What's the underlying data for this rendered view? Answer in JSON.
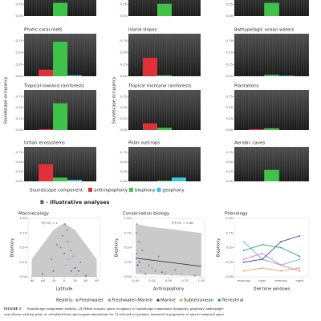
{
  "panel_a": {
    "y_label": "Soundscape occupancy",
    "ylim": [
      0,
      0.9
    ],
    "yticks": [
      {
        "value": 0,
        "label": "0.00"
      },
      {
        "value": 0.25,
        "label": "0.25"
      },
      {
        "value": 0.5,
        "label": "0.50"
      },
      {
        "value": 0.75,
        "label": "0.75"
      }
    ],
    "top_row": [
      {
        "values": [
          0,
          0.28,
          0
        ]
      },
      {
        "values": [
          0,
          0.26,
          0
        ]
      },
      {
        "values": [
          0,
          0.28,
          0
        ]
      }
    ],
    "panels": [
      {
        "title": "Photic coral reefs",
        "values": [
          0.14,
          0.73,
          0.02
        ]
      },
      {
        "title": "Island slopes",
        "values": [
          0.39,
          0.02,
          0
        ]
      },
      {
        "title": "Bathypelagic ocean waters",
        "values": [
          0,
          0.03,
          0.01
        ]
      },
      {
        "title": "Tropical lowland rainforests",
        "values": [
          0.02,
          0.6,
          0
        ]
      },
      {
        "title": "Tropical montane rainforests",
        "values": [
          0.15,
          0.05,
          0
        ]
      },
      {
        "title": "Plantations",
        "values": [
          0.02,
          0.04,
          0
        ]
      },
      {
        "title": "Urban ecosystems",
        "values": [
          0.45,
          0.1,
          0.04
        ]
      },
      {
        "title": "Polar outcrops",
        "values": [
          0,
          0.02,
          0.1
        ]
      },
      {
        "title": "Aerobic caves",
        "values": [
          0,
          0.3,
          0
        ]
      }
    ],
    "legend_title": "Soundscape component:",
    "components": [
      {
        "name": "anthropophony",
        "color": "#e0313a"
      },
      {
        "name": "biophony",
        "color": "#3ec24a"
      },
      {
        "name": "geophony",
        "color": "#3dc6d8"
      }
    ]
  },
  "panel_b": {
    "title": "B - Illustrative analyses",
    "y_label": "Biophony",
    "ylim": [
      0,
      1
    ],
    "yticks": [
      {
        "value": 0,
        "label": "0.00"
      },
      {
        "value": 0.25,
        "label": "0.25"
      },
      {
        "value": 0.5,
        "label": "0.50"
      },
      {
        "value": 0.75,
        "label": "0.75"
      },
      {
        "value": 1,
        "label": "1.00"
      }
    ],
    "realm_title": "Realms:",
    "realms": [
      {
        "name": "Freshwater",
        "color": "#6baed6"
      },
      {
        "name": "Freshwater-Marine",
        "color": "#e377c2"
      },
      {
        "name": "Marine",
        "color": "#3152a3"
      },
      {
        "name": "Subterranean",
        "color": "#f0a040"
      },
      {
        "name": "Terrestrial",
        "color": "#2ca25f"
      }
    ],
    "plots": [
      {
        "type": "scatter",
        "title": "Macroecology",
        "stat": "P(r̂<0) = 1",
        "x_label": "Latitude",
        "xlim": [
          -100,
          100
        ],
        "xticks": [
          -90,
          -60,
          -30,
          0,
          30,
          60,
          90
        ],
        "band": {
          "x": [
            -90,
            -60,
            -30,
            0,
            30,
            60,
            90
          ],
          "lower": [
            0,
            0,
            0,
            0,
            0,
            0,
            0
          ],
          "upper": [
            0.3,
            0.55,
            0.8,
            0.92,
            0.8,
            0.55,
            0.3
          ]
        },
        "points": {
          "x": [
            -60,
            -35,
            -30,
            -20,
            -5,
            0,
            2,
            5,
            10,
            18,
            20,
            25,
            30,
            35,
            45,
            60,
            8,
            -10,
            12,
            40
          ],
          "y": [
            0.05,
            0.3,
            0.1,
            0.55,
            0.7,
            0.4,
            0.9,
            0.2,
            0.6,
            0.45,
            0.1,
            0.35,
            0.15,
            0.05,
            0.25,
            0.02,
            0.8,
            0.5,
            0.3,
            0.1
          ],
          "realm": [
            2,
            4,
            2,
            4,
            4,
            2,
            4,
            0,
            4,
            4,
            2,
            1,
            2,
            3,
            4,
            2,
            4,
            4,
            0,
            2
          ]
        }
      },
      {
        "type": "scatter",
        "title": "Conservation biology",
        "stat": "P(r̂<0) = 0.98",
        "x_label": "Anthropophony",
        "xlim": [
          -0.05,
          1.05
        ],
        "xticks": [
          {
            "value": 0,
            "label": "0.00"
          },
          {
            "value": 0.25,
            "label": "0.25"
          },
          {
            "value": 0.5,
            "label": "0.50"
          },
          {
            "value": 0.75,
            "label": "0.75"
          },
          {
            "value": 1,
            "label": "1.00"
          }
        ],
        "band": {
          "x": [
            0,
            0.25,
            0.5,
            0.75,
            1
          ],
          "lower": [
            0.05,
            0.04,
            0.03,
            0.02,
            0.01
          ],
          "upper": [
            0.9,
            0.85,
            0.82,
            0.78,
            0.75
          ]
        },
        "fit": {
          "x": [
            0,
            1
          ],
          "y": [
            0.32,
            0.18
          ]
        },
        "points": {
          "x": [
            0.01,
            0.02,
            0.03,
            0.05,
            0.08,
            0.1,
            0.12,
            0.15,
            0.2,
            0.25,
            0.3,
            0.4,
            0.45,
            0.55,
            0.6,
            0.02,
            0.06,
            0.35,
            0.7,
            0.9
          ],
          "y": [
            0.75,
            0.4,
            0.2,
            0.6,
            0.1,
            0.45,
            0.3,
            0.05,
            0.2,
            0.15,
            0.1,
            0.08,
            0.05,
            0.03,
            0.12,
            0.9,
            0.25,
            0.35,
            0.05,
            0.02
          ],
          "realm": [
            4,
            4,
            2,
            4,
            0,
            4,
            4,
            2,
            4,
            1,
            4,
            2,
            4,
            3,
            4,
            4,
            2,
            4,
            0,
            4
          ]
        }
      },
      {
        "type": "line",
        "title": "Phenology",
        "x_label": "Diel time windows",
        "categories": [
          "morning",
          "noon",
          "evening",
          "night"
        ],
        "series": [
          {
            "realm": 0,
            "values": [
              0.6,
              0.3,
              0.2,
              0.3
            ]
          },
          {
            "realm": 1,
            "values": [
              0.3,
              0.4,
              0.2,
              0.1
            ]
          },
          {
            "realm": 2,
            "values": [
              0.25,
              0.3,
              0.6,
              0.7
            ]
          },
          {
            "realm": 3,
            "values": [
              0.1,
              0.15,
              0.1,
              0.15
            ]
          },
          {
            "realm": 4,
            "values": [
              0.45,
              0.55,
              0.5,
              0.35
            ]
          }
        ]
      }
    ]
  },
  "caption": {
    "label": "FIGURE 5",
    "lines": [
      "Soundscape components analysis. (A) Mean acoustic space occupancy of soundscape components (biophony, geophony, anthropoph-",
      "ony) shown with bar plots, as calculated from spectrogram annotations for 12 selected ecosystems, measured in proportion of spectro-temporal space"
    ]
  }
}
